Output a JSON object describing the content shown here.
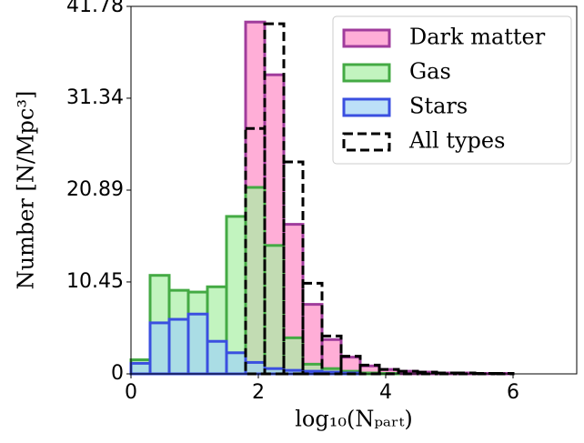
{
  "chart_data": {
    "type": "histogram",
    "xlabel": "log₁₀(Nₚₐᵣₜ)",
    "ylabel": "Number [N/Mpc³]",
    "bins": [
      0,
      0.3,
      0.6,
      0.9,
      1.2,
      1.5,
      1.8,
      2.1,
      2.4,
      2.7,
      3.0,
      3.3,
      3.6,
      3.9,
      4.2,
      4.5,
      4.8,
      5.1,
      5.4,
      5.7,
      6.0,
      6.3
    ],
    "series": [
      {
        "name": "Dark matter",
        "color": "#ff8cc6",
        "edgecolor": "#a03c9c",
        "histtype": "stepfilled",
        "values": [
          0,
          0,
          0,
          0,
          0,
          0,
          40.0,
          34.0,
          17.0,
          7.9,
          3.9,
          1.9,
          0.9,
          0.5,
          0.3,
          0.2,
          0.1,
          0.1,
          0.05,
          0.05,
          0
        ]
      },
      {
        "name": "Gas",
        "color": "#a8f0a4",
        "edgecolor": "#44aa44",
        "histtype": "stepfilled",
        "values": [
          1.6,
          11.2,
          9.5,
          9.3,
          9.9,
          17.9,
          21.2,
          14.6,
          4.1,
          1.1,
          0.6,
          0.3,
          0.1,
          0.05,
          0,
          0,
          0,
          0,
          0,
          0,
          0
        ]
      },
      {
        "name": "Stars",
        "color": "#9fd3f5",
        "edgecolor": "#3a4fe0",
        "histtype": "stepfilled",
        "values": [
          1.2,
          5.8,
          6.2,
          6.8,
          3.7,
          2.4,
          1.3,
          0.6,
          0.4,
          0.3,
          0.2,
          0.1,
          0,
          0,
          0,
          0,
          0,
          0,
          0,
          0,
          0
        ]
      },
      {
        "name": "All types",
        "color": "#000000",
        "edgecolor": "#000000",
        "histtype": "step",
        "linestyle": "dashed",
        "values": [
          0,
          0,
          0,
          0,
          0,
          0,
          27.9,
          39.8,
          24.1,
          10.3,
          4.3,
          2.0,
          1.0,
          0.5,
          0.3,
          0.2,
          0.1,
          0.1,
          0.05,
          0.05,
          0
        ]
      }
    ],
    "xlim": [
      0,
      7
    ],
    "xticks": [
      0,
      2,
      4,
      6
    ],
    "ylim": [
      0,
      41.78
    ],
    "yticks": [
      0,
      10.45,
      20.89,
      31.34,
      41.78
    ],
    "legend": "upper right",
    "fill_opacity": 0.7
  }
}
